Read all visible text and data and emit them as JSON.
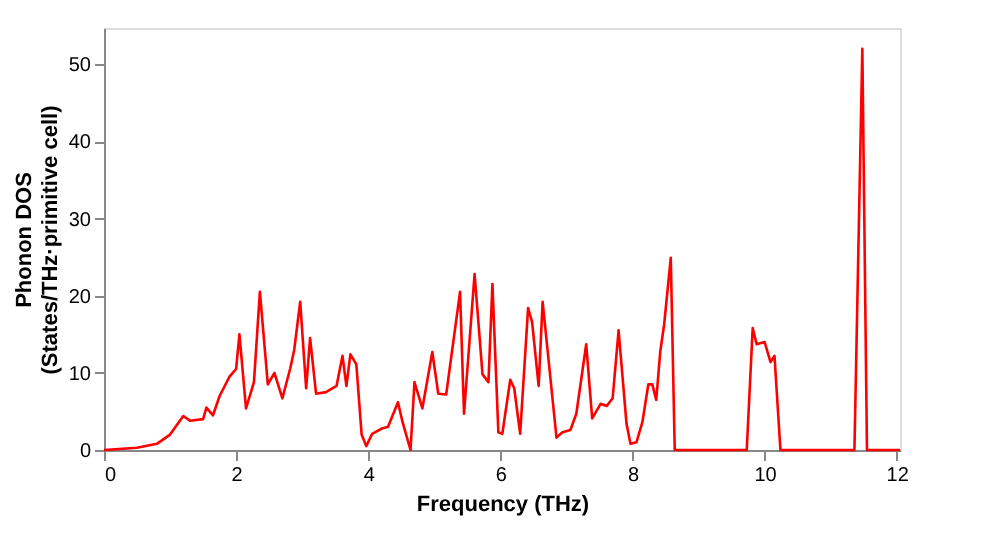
{
  "chart_data": {
    "type": "line",
    "xlabel": "Frequency (THz)",
    "ylabel": "Phonon DOS\n(States/THz·primitive cell)",
    "xlim": [
      0,
      12.05
    ],
    "ylim": [
      0,
      54.7
    ],
    "xticks": [
      0,
      2,
      4,
      6,
      8,
      10,
      12
    ],
    "yticks": [
      0,
      10,
      20,
      30,
      40,
      50
    ],
    "grid": false,
    "legend": false,
    "series": [
      {
        "color": "#ff0000",
        "x": [
          0,
          0.5,
          0.8,
          1.0,
          1.2,
          1.3,
          1.5,
          1.55,
          1.65,
          1.75,
          1.9,
          2.0,
          2.05,
          2.15,
          2.27,
          2.36,
          2.48,
          2.58,
          2.7,
          2.82,
          2.88,
          2.97,
          3.06,
          3.12,
          3.21,
          3.36,
          3.52,
          3.61,
          3.67,
          3.73,
          3.82,
          3.9,
          3.97,
          4.06,
          4.21,
          4.3,
          4.45,
          4.52,
          4.64,
          4.7,
          4.82,
          4.97,
          5.06,
          5.18,
          5.39,
          5.45,
          5.61,
          5.73,
          5.82,
          5.88,
          5.97,
          6.03,
          6.15,
          6.21,
          6.3,
          6.42,
          6.48,
          6.58,
          6.64,
          6.85,
          6.94,
          7.06,
          7.15,
          7.3,
          7.39,
          7.52,
          7.61,
          7.7,
          7.79,
          7.91,
          7.97,
          8.06,
          8.15,
          8.24,
          8.3,
          8.36,
          8.42,
          8.48,
          8.58,
          8.64,
          9.73,
          9.82,
          9.88,
          10.0,
          10.09,
          10.15,
          10.24,
          11.36,
          11.48,
          11.55,
          12.05
        ],
        "values": [
          0,
          0.3,
          0.8,
          2,
          4.4,
          3.8,
          4,
          5.5,
          4.5,
          7,
          9.5,
          10.5,
          15,
          5.4,
          8.8,
          20.5,
          8.5,
          10,
          6.7,
          10.6,
          13,
          19.2,
          8,
          14.5,
          7.3,
          7.5,
          8.3,
          12.2,
          8.3,
          12.4,
          11.1,
          2,
          0.5,
          2.1,
          2.8,
          3,
          6.2,
          3.6,
          0,
          8.8,
          5.4,
          12.7,
          7.3,
          7.2,
          20.5,
          4.7,
          22.8,
          9.8,
          8.8,
          21.5,
          2.3,
          2.1,
          9.1,
          8,
          2.1,
          18.4,
          16.6,
          8.3,
          19.2,
          1.6,
          2.3,
          2.6,
          4.7,
          13.7,
          4.1,
          6,
          5.7,
          6.7,
          15.5,
          3.4,
          0.8,
          1,
          3.6,
          8.5,
          8.5,
          6.5,
          12.7,
          16.3,
          24.9,
          0,
          0,
          15.8,
          13.7,
          14,
          11.4,
          12.2,
          0,
          0,
          52,
          0,
          0
        ]
      }
    ]
  }
}
